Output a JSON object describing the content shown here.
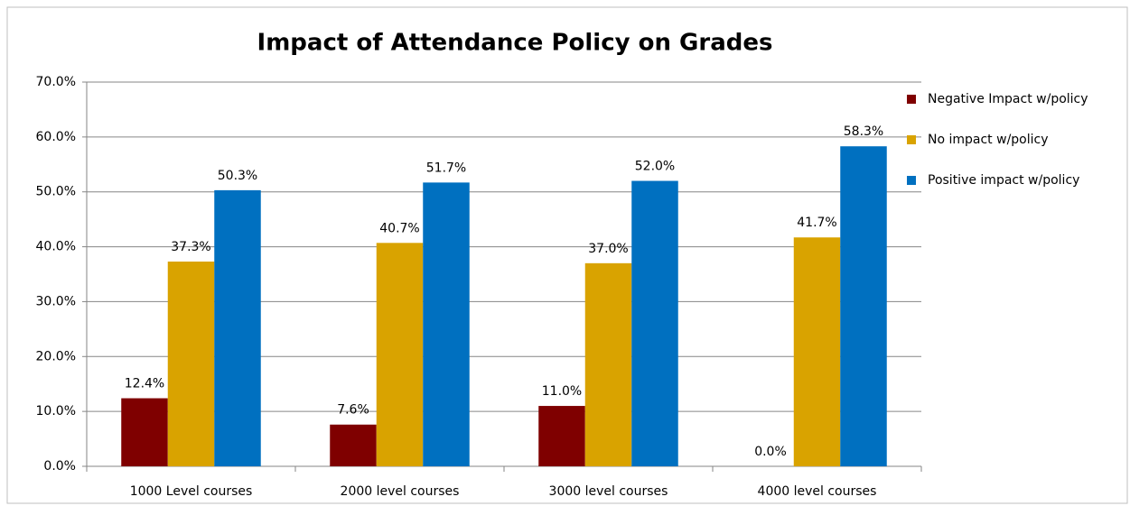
{
  "chart_data": {
    "type": "bar",
    "title": "Impact of Attendance Policy on Grades",
    "categories": [
      "1000 Level courses",
      "2000 level courses",
      "3000 level courses",
      "4000 level courses"
    ],
    "series": [
      {
        "name": "Negative Impact w/policy",
        "color": "#7f0000",
        "values": [
          12.4,
          7.6,
          11.0,
          0.0
        ],
        "value_labels": [
          "12.4%",
          "7.6%",
          "11.0%",
          "0.0%"
        ]
      },
      {
        "name": "No impact w/policy",
        "color": "#d9a300",
        "values": [
          37.3,
          40.7,
          37.0,
          41.7
        ],
        "value_labels": [
          "37.3%",
          "40.7%",
          "37.0%",
          "41.7%"
        ]
      },
      {
        "name": "Positive impact w/policy",
        "color": "#0070c0",
        "values": [
          50.3,
          51.7,
          52.0,
          58.3
        ],
        "value_labels": [
          "50.3%",
          "51.7%",
          "52.0%",
          "58.3%"
        ]
      }
    ],
    "ylim": [
      0,
      70
    ],
    "yticks": [
      {
        "value": 0,
        "label": "0.0%"
      },
      {
        "value": 10,
        "label": "10.0%"
      },
      {
        "value": 20,
        "label": "20.0%"
      },
      {
        "value": 30,
        "label": "30.0%"
      },
      {
        "value": 40,
        "label": "40.0%"
      },
      {
        "value": 50,
        "label": "50.0%"
      },
      {
        "value": 60,
        "label": "60.0%"
      },
      {
        "value": 70,
        "label": "70.0%"
      }
    ],
    "grid": true,
    "legend": "right"
  }
}
